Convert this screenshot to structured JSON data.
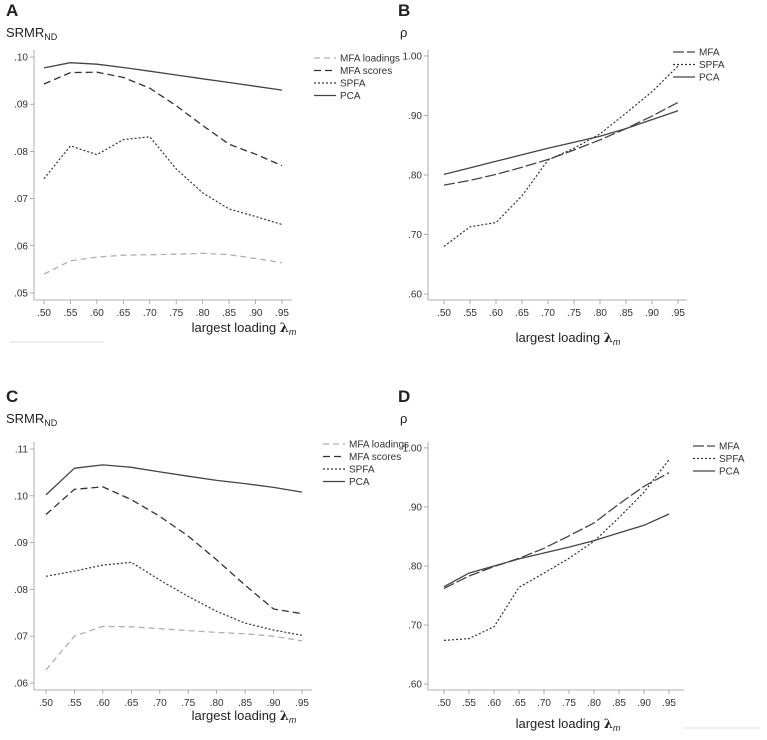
{
  "chart_data": [
    {
      "panel": "A",
      "type": "line",
      "ylabel_main": "SRMR",
      "ylabel_sub": "ND",
      "xlabel": "largest loading",
      "xlabel_symbol": "λ",
      "xlabel_sub": "m",
      "categories": [
        ".50",
        ".55",
        ".60",
        ".65",
        ".70",
        ".75",
        ".80",
        ".85",
        ".90",
        ".95"
      ],
      "ylim": [
        0.0485,
        0.1015
      ],
      "yticks": [
        0.05,
        0.06,
        0.07,
        0.08,
        0.09,
        0.1
      ],
      "ytick_labels": [
        ".05",
        ".06",
        ".07",
        ".08",
        ".09",
        ".10"
      ],
      "series": [
        {
          "name": "MFA loadings",
          "style": "light-dashed",
          "values": [
            0.054,
            0.0568,
            0.0576,
            0.058,
            0.0581,
            0.0582,
            0.0584,
            0.0581,
            0.0573,
            0.0564
          ]
        },
        {
          "name": "MFA scores",
          "style": "dashed",
          "values": [
            0.0943,
            0.0967,
            0.0968,
            0.0957,
            0.0934,
            0.0897,
            0.0855,
            0.0815,
            0.0794,
            0.077
          ]
        },
        {
          "name": "SPFA",
          "style": "dotted",
          "values": [
            0.0742,
            0.0812,
            0.0793,
            0.0825,
            0.0831,
            0.0763,
            0.0712,
            0.0678,
            0.0662,
            0.0645
          ]
        },
        {
          "name": "PCA",
          "style": "solid",
          "values": [
            0.0977,
            0.0988,
            0.0985,
            0.0978,
            0.097,
            0.0962,
            0.0954,
            0.0946,
            0.0938,
            0.093
          ]
        }
      ]
    },
    {
      "panel": "B",
      "type": "line",
      "ylabel_main": "ρ",
      "ylabel_sub": "",
      "xlabel": "largest loading",
      "xlabel_symbol": "λ",
      "xlabel_sub": "m",
      "categories": [
        ".50",
        ".55",
        ".60",
        ".65",
        ".70",
        ".75",
        ".80",
        ".85",
        ".90",
        ".95"
      ],
      "ylim": [
        0.59,
        1.01
      ],
      "yticks": [
        0.6,
        0.7,
        0.8,
        0.9,
        1.0
      ],
      "ytick_labels": [
        ".60",
        ".70",
        ".80",
        ".90",
        "1.00"
      ],
      "series": [
        {
          "name": "MFA",
          "style": "long-dashed",
          "values": [
            0.783,
            0.791,
            0.801,
            0.813,
            0.826,
            0.842,
            0.859,
            0.878,
            0.899,
            0.922
          ]
        },
        {
          "name": "SPFA",
          "style": "dotted",
          "values": [
            0.68,
            0.713,
            0.72,
            0.765,
            0.825,
            0.845,
            0.869,
            0.904,
            0.94,
            0.983
          ]
        },
        {
          "name": "PCA",
          "style": "solid",
          "values": [
            0.801,
            0.812,
            0.823,
            0.834,
            0.845,
            0.855,
            0.865,
            0.878,
            0.893,
            0.908
          ]
        }
      ]
    },
    {
      "panel": "C",
      "type": "line",
      "ylabel_main": "SRMR",
      "ylabel_sub": "ND",
      "xlabel": "largest loading",
      "xlabel_symbol": "λ",
      "xlabel_sub": "m",
      "categories": [
        ".50",
        ".55",
        ".60",
        ".65",
        ".70",
        ".75",
        ".80",
        ".85",
        ".90",
        ".95"
      ],
      "ylim": [
        0.0585,
        0.1115
      ],
      "yticks": [
        0.06,
        0.07,
        0.08,
        0.09,
        0.1,
        0.11
      ],
      "ytick_labels": [
        ".06",
        ".07",
        ".08",
        ".09",
        ".10",
        ".11"
      ],
      "series": [
        {
          "name": "MFA loadings",
          "style": "light-dashed",
          "values": [
            0.0628,
            0.07,
            0.0721,
            0.072,
            0.0716,
            0.0712,
            0.0708,
            0.0705,
            0.07,
            0.069
          ]
        },
        {
          "name": "MFA scores",
          "style": "dashed",
          "values": [
            0.096,
            0.1014,
            0.1019,
            0.0992,
            0.0956,
            0.0914,
            0.0863,
            0.0809,
            0.0758,
            0.0748
          ]
        },
        {
          "name": "SPFA",
          "style": "dotted",
          "values": [
            0.0828,
            0.0839,
            0.0852,
            0.0858,
            0.082,
            0.0785,
            0.0753,
            0.0728,
            0.0713,
            0.0702
          ]
        },
        {
          "name": "PCA",
          "style": "solid",
          "values": [
            0.1002,
            0.1059,
            0.1066,
            0.1061,
            0.1051,
            0.1042,
            0.1033,
            0.1026,
            0.1018,
            0.1008
          ]
        }
      ]
    },
    {
      "panel": "D",
      "type": "line",
      "ylabel_main": "ρ",
      "ylabel_sub": "",
      "xlabel": "largest loading",
      "xlabel_symbol": "λ",
      "xlabel_sub": "m",
      "categories": [
        ".50",
        ".55",
        ".60",
        ".65",
        ".70",
        ".75",
        ".80",
        ".85",
        ".90",
        ".95"
      ],
      "ylim": [
        0.59,
        1.01
      ],
      "yticks": [
        0.6,
        0.7,
        0.8,
        0.9,
        1.0
      ],
      "ytick_labels": [
        ".60",
        ".70",
        ".80",
        ".90",
        "1.00"
      ],
      "series": [
        {
          "name": "MFA",
          "style": "long-dashed",
          "values": [
            0.762,
            0.783,
            0.799,
            0.813,
            0.83,
            0.851,
            0.873,
            0.905,
            0.935,
            0.958
          ]
        },
        {
          "name": "SPFA",
          "style": "dotted",
          "values": [
            0.674,
            0.677,
            0.697,
            0.764,
            0.788,
            0.813,
            0.842,
            0.882,
            0.925,
            0.98
          ]
        },
        {
          "name": "PCA",
          "style": "solid",
          "values": [
            0.765,
            0.788,
            0.8,
            0.812,
            0.822,
            0.832,
            0.843,
            0.856,
            0.869,
            0.888
          ]
        }
      ]
    }
  ]
}
